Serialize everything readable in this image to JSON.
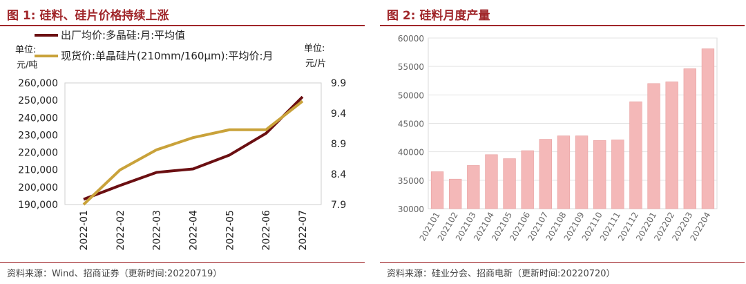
{
  "panel1": {
    "title": "图 1:  硅料、硅片价格持续上涨",
    "source": "资料来源：Wind、招商证券（更新时间:20220719）"
  },
  "panel2": {
    "title": "图 2:  硅料月度产量",
    "source": "资料来源：硅业分会、招商电新（更新时间:20220720）"
  },
  "chart_data": [
    {
      "type": "line",
      "title": "硅料、硅片价格持续上涨",
      "left_unit": "单位:元/吨",
      "right_unit": "单位:元/片",
      "categories": [
        "2022-01",
        "2022-02",
        "2022-03",
        "2022-04",
        "2022-05",
        "2022-06",
        "2022-07"
      ],
      "y_left_ticks": [
        "190,000",
        "200,000",
        "210,000",
        "220,000",
        "230,000",
        "240,000",
        "250,000",
        "260,000"
      ],
      "y_right_ticks": [
        "7.9",
        "8.4",
        "8.9",
        "9.4",
        "9.9"
      ],
      "ylim_left": [
        190000,
        260000
      ],
      "ylim_right": [
        7.9,
        9.9
      ],
      "series": [
        {
          "name": "出厂均价:多晶硅:月:平均值",
          "axis": "left",
          "color": "#6b0f12",
          "values": [
            193000,
            201000,
            208500,
            210500,
            218500,
            231000,
            252000
          ]
        },
        {
          "name": "现货价:单晶硅片(210mm/160μm):平均价:月",
          "axis": "right",
          "color": "#c9a23a",
          "values": [
            7.9,
            8.47,
            8.8,
            9.0,
            9.13,
            9.13,
            9.6
          ]
        }
      ]
    },
    {
      "type": "bar",
      "title": "硅料月度产量",
      "categories": [
        "202101",
        "202102",
        "202103",
        "202104",
        "202105",
        "202106",
        "202107",
        "202108",
        "202109",
        "202110",
        "202111",
        "202112",
        "202201",
        "202202",
        "202203",
        "202204"
      ],
      "y_ticks": [
        "30000",
        "35000",
        "40000",
        "45000",
        "50000",
        "55000",
        "60000"
      ],
      "ylim": [
        30000,
        60000
      ],
      "color": "#f4b8b8",
      "values": [
        36500,
        35200,
        37600,
        39500,
        38800,
        40200,
        42200,
        42800,
        42800,
        42000,
        42100,
        48800,
        52000,
        52300,
        54600,
        58100
      ]
    }
  ]
}
